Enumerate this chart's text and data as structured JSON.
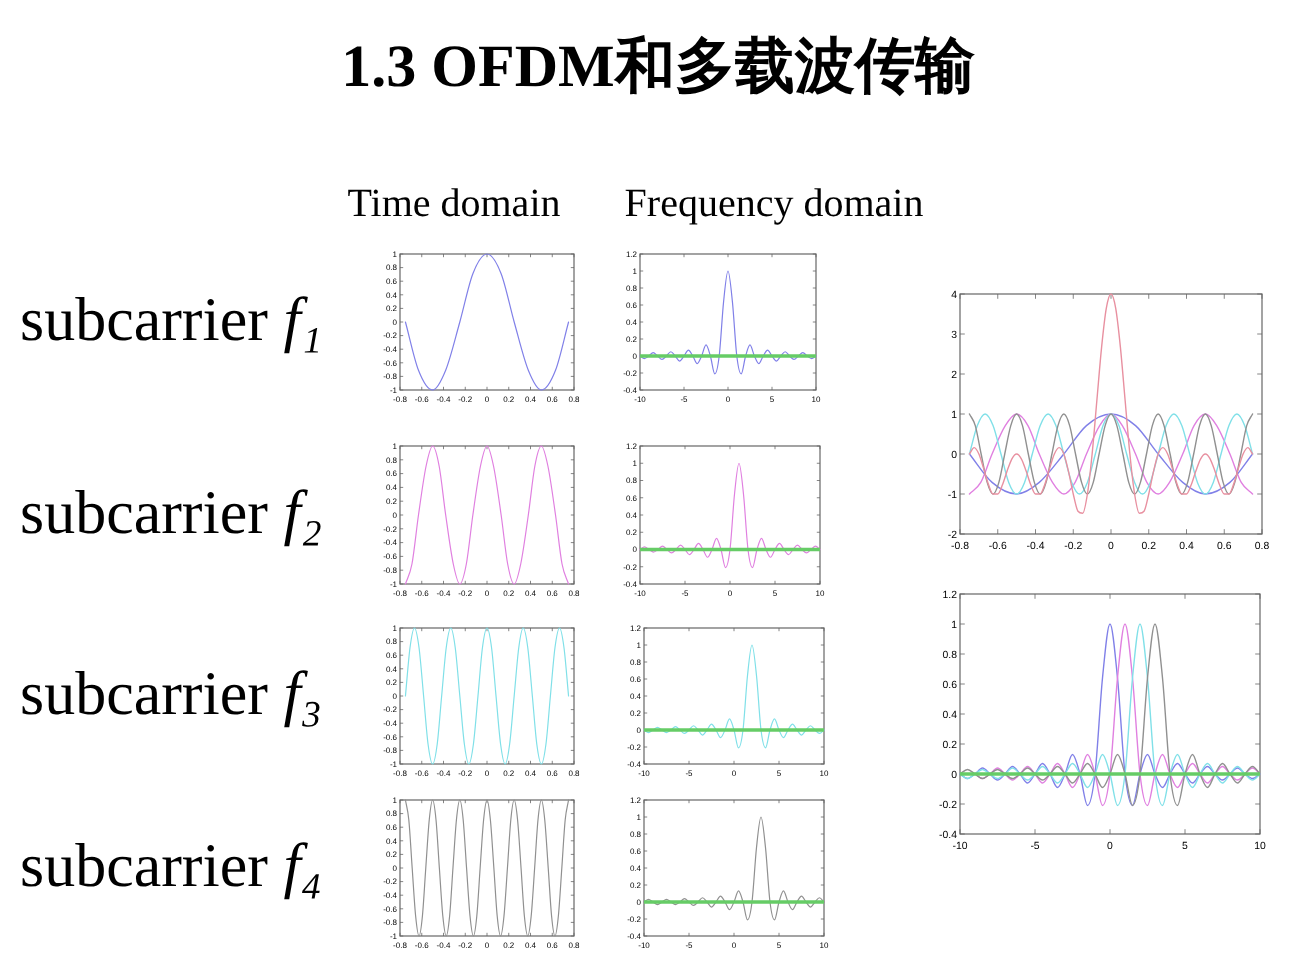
{
  "chart_data": [
    {
      "type": "other",
      "title": "1.3 OFDM和多载波传输"
    },
    {
      "type": "line",
      "title": "Time domain",
      "ylabel": "subcarrier *f₁*",
      "xlim": [
        -0.8,
        0.8
      ],
      "ylim": [
        -1,
        1
      ],
      "xticks": [
        -0.8,
        -0.6,
        -0.4,
        -0.2,
        0,
        0.2,
        0.4,
        0.6,
        0.8
      ],
      "yticks": [
        -1,
        -0.8,
        -0.6,
        -0.4,
        -0.2,
        0,
        0.2,
        0.4,
        0.6,
        0.8,
        1
      ],
      "series": [
        {
          "color": "#8080e8",
          "x": [
            -0.75,
            -0.63,
            -0.5,
            -0.38,
            -0.25,
            -0.13,
            0,
            0.13,
            0.25,
            0.38,
            0.5,
            0.63,
            0.75
          ],
          "values": [
            0,
            -0.71,
            -1,
            -0.71,
            0,
            0.71,
            1,
            0.71,
            0,
            -0.71,
            -1,
            -0.71,
            0
          ]
        }
      ]
    },
    {
      "type": "line",
      "title": "Frequency domain",
      "xlim": [
        -10,
        10
      ],
      "ylim": [
        -0.4,
        1.2
      ],
      "xticks": [
        -10,
        -5,
        0,
        5,
        10
      ],
      "yticks": [
        -0.4,
        -0.2,
        0,
        0.2,
        0.4,
        0.6,
        0.8,
        1,
        1.2
      ],
      "x": [
        -10,
        -9.5,
        -9,
        -8.5,
        -8,
        -7.5,
        -7,
        -6.5,
        -6,
        -5.5,
        -5,
        -4.5,
        -4,
        -3.5,
        -3,
        -2.5,
        -2,
        -1.5,
        -1,
        -0.5,
        0,
        0.5,
        1,
        1.5,
        2,
        2.5,
        3,
        3.5,
        4,
        4.5,
        5,
        5.5,
        6,
        6.5,
        7,
        7.5,
        8,
        8.5,
        9,
        9.5,
        10
      ],
      "series": [
        {
          "color": "#8080e8",
          "values": [
            0,
            -0.03,
            0,
            0.04,
            0,
            -0.04,
            0,
            0.05,
            0,
            -0.06,
            0,
            0.07,
            0,
            -0.09,
            0,
            0.13,
            0,
            -0.21,
            0,
            0.64,
            1,
            0.64,
            0,
            -0.21,
            0,
            0.13,
            0,
            -0.09,
            0,
            0.07,
            0,
            -0.06,
            0,
            0.05,
            0,
            -0.04,
            0,
            0.04,
            0,
            -0.03,
            0
          ]
        }
      ],
      "ref_lines": [
        {
          "axis": "y",
          "value": 0,
          "color": "#66cc66"
        }
      ]
    },
    {
      "type": "line",
      "xlim": [
        -0.8,
        0.8
      ],
      "ylim": [
        -2,
        4
      ],
      "xticks": [
        -0.8,
        -0.6,
        -0.4,
        -0.2,
        0,
        0.2,
        0.4,
        0.6,
        0.8
      ],
      "yticks": [
        -2,
        -1,
        0,
        1,
        2,
        3,
        4
      ],
      "series": [
        {
          "color": "#8080e8",
          "x": [
            -0.75,
            -0.63,
            -0.5,
            -0.38,
            -0.25,
            -0.13,
            0,
            0.13,
            0.25,
            0.38,
            0.5,
            0.63,
            0.75
          ],
          "values": [
            0,
            -0.71,
            -1,
            -0.71,
            0,
            0.71,
            1,
            0.71,
            0,
            -0.71,
            -1,
            -0.71,
            0
          ]
        },
        {
          "color": "#e080e0",
          "x": [
            -0.75,
            -0.69,
            -0.63,
            -0.56,
            -0.5,
            -0.44,
            -0.38,
            -0.31,
            -0.25,
            -0.19,
            -0.13,
            -0.06,
            0,
            0.06,
            0.13,
            0.19,
            0.25,
            0.31,
            0.38,
            0.44,
            0.5,
            0.56,
            0.63,
            0.69,
            0.75
          ],
          "values": [
            -1,
            -0.71,
            0,
            0.71,
            1,
            0.71,
            0,
            -0.71,
            -1,
            -0.71,
            0,
            0.71,
            1,
            0.71,
            0,
            -0.71,
            -1,
            -0.71,
            0,
            0.71,
            1,
            0.71,
            0,
            -0.71,
            -1
          ]
        },
        {
          "color": "#80e0e8",
          "x": [
            -0.75,
            -0.708,
            -0.667,
            -0.625,
            -0.583,
            -0.542,
            -0.5,
            -0.458,
            -0.417,
            -0.375,
            -0.333,
            -0.292,
            -0.25,
            -0.208,
            -0.167,
            -0.125,
            -0.083,
            -0.042,
            0,
            0.042,
            0.083,
            0.125,
            0.167,
            0.208,
            0.25,
            0.292,
            0.333,
            0.375,
            0.417,
            0.458,
            0.5,
            0.542,
            0.583,
            0.625,
            0.667,
            0.708,
            0.75
          ],
          "values": [
            0,
            0.71,
            1,
            0.71,
            0,
            -0.71,
            -1,
            -0.71,
            0,
            0.71,
            1,
            0.71,
            0,
            -0.71,
            -1,
            -0.71,
            0,
            0.71,
            1,
            0.71,
            0,
            -0.71,
            -1,
            -0.71,
            0,
            0.71,
            1,
            0.71,
            0,
            -0.71,
            -1,
            -0.71,
            0,
            0.71,
            1,
            0.71,
            0
          ]
        },
        {
          "color": "#909090",
          "x": [
            -0.75,
            -0.719,
            -0.688,
            -0.656,
            -0.625,
            -0.594,
            -0.563,
            -0.531,
            -0.5,
            -0.469,
            -0.438,
            -0.406,
            -0.375,
            -0.344,
            -0.313,
            -0.281,
            -0.25,
            -0.219,
            -0.188,
            -0.156,
            -0.125,
            -0.094,
            -0.063,
            -0.031,
            0,
            0.031,
            0.063,
            0.094,
            0.125,
            0.156,
            0.188,
            0.219,
            0.25,
            0.281,
            0.313,
            0.344,
            0.375,
            0.406,
            0.438,
            0.469,
            0.5,
            0.531,
            0.563,
            0.594,
            0.625,
            0.656,
            0.688,
            0.719,
            0.75
          ],
          "values": [
            1,
            0.71,
            0,
            -0.71,
            -1,
            -0.71,
            0,
            0.71,
            1,
            0.71,
            0,
            -0.71,
            -1,
            -0.71,
            0,
            0.71,
            1,
            0.71,
            0,
            -0.71,
            -1,
            -0.71,
            0,
            0.71,
            1,
            0.71,
            0,
            -0.71,
            -1,
            -0.71,
            0,
            0.71,
            1,
            0.71,
            0,
            -0.71,
            -1,
            -0.71,
            0,
            0.71,
            1,
            0.71,
            0,
            -0.71,
            -1,
            -0.71,
            0,
            0.71,
            1
          ]
        },
        {
          "color": "#e890a0",
          "x": [
            -0.75,
            -0.725,
            -0.7,
            -0.675,
            -0.65,
            -0.625,
            -0.6,
            -0.575,
            -0.55,
            -0.525,
            -0.5,
            -0.475,
            -0.45,
            -0.425,
            -0.4,
            -0.375,
            -0.35,
            -0.325,
            -0.3,
            -0.275,
            -0.25,
            -0.225,
            -0.2,
            -0.175,
            -0.15,
            -0.125,
            -0.1,
            -0.075,
            -0.05,
            -0.025,
            0,
            0.025,
            0.05,
            0.075,
            0.1,
            0.125,
            0.15,
            0.175,
            0.2,
            0.225,
            0.25,
            0.275,
            0.3,
            0.325,
            0.35,
            0.375,
            0.4,
            0.425,
            0.45,
            0.475,
            0.5,
            0.525,
            0.55,
            0.575,
            0.6,
            0.625,
            0.65,
            0.675,
            0.7,
            0.725,
            0.75
          ],
          "values": [
            0,
            0.16,
            0,
            -0.36,
            -0.75,
            -1,
            -1,
            -0.77,
            -0.42,
            -0.12,
            0,
            -0.12,
            -0.42,
            -0.77,
            -1,
            -1,
            -0.75,
            -0.36,
            0,
            0.16,
            0,
            -0.44,
            -1,
            -1.43,
            -1.48,
            -1,
            0,
            1.33,
            2.66,
            3.64,
            4,
            3.64,
            2.66,
            1.33,
            0,
            -1,
            -1.48,
            -1.43,
            -1,
            -0.44,
            0,
            0.16,
            0,
            -0.36,
            -0.75,
            -1,
            -1,
            -0.77,
            -0.42,
            -0.12,
            0,
            -0.12,
            -0.42,
            -0.77,
            -1,
            -1,
            -0.75,
            -0.36,
            0,
            0.16,
            0
          ]
        }
      ]
    },
    {
      "type": "line",
      "ylabel": "subcarrier *f₂*",
      "xlim": [
        -0.8,
        0.8
      ],
      "ylim": [
        -1,
        1
      ],
      "xticks": [
        -0.8,
        -0.6,
        -0.4,
        -0.2,
        0,
        0.2,
        0.4,
        0.6,
        0.8
      ],
      "yticks": [
        -1,
        -0.8,
        -0.6,
        -0.4,
        -0.2,
        0,
        0.2,
        0.4,
        0.6,
        0.8,
        1
      ],
      "series": [
        {
          "color": "#e080e0",
          "x": [
            -0.75,
            -0.69,
            -0.63,
            -0.56,
            -0.5,
            -0.44,
            -0.38,
            -0.31,
            -0.25,
            -0.19,
            -0.13,
            -0.06,
            0,
            0.06,
            0.13,
            0.19,
            0.25,
            0.31,
            0.38,
            0.44,
            0.5,
            0.56,
            0.63,
            0.69,
            0.75
          ],
          "values": [
            -1,
            -0.71,
            0,
            0.71,
            1,
            0.71,
            0,
            -0.71,
            -1,
            -0.71,
            0,
            0.71,
            1,
            0.71,
            0,
            -0.71,
            -1,
            -0.71,
            0,
            0.71,
            1,
            0.71,
            0,
            -0.71,
            -1
          ]
        }
      ]
    },
    {
      "type": "line",
      "xlim": [
        -10,
        10
      ],
      "ylim": [
        -0.4,
        1.2
      ],
      "xticks": [
        -10,
        -5,
        0,
        5,
        10
      ],
      "yticks": [
        -0.4,
        -0.2,
        0,
        0.2,
        0.4,
        0.6,
        0.8,
        1,
        1.2
      ],
      "x": [
        -10,
        -9.5,
        -9,
        -8.5,
        -8,
        -7.5,
        -7,
        -6.5,
        -6,
        -5.5,
        -5,
        -4.5,
        -4,
        -3.5,
        -3,
        -2.5,
        -2,
        -1.5,
        -1,
        -0.5,
        0,
        0.5,
        1,
        1.5,
        2,
        2.5,
        3,
        3.5,
        4,
        4.5,
        5,
        5.5,
        6,
        6.5,
        7,
        7.5,
        8,
        8.5,
        9,
        9.5,
        10
      ],
      "series": [
        {
          "color": "#e080e0",
          "values": [
            0,
            0.03,
            0,
            -0.03,
            0,
            0.04,
            0,
            -0.04,
            0,
            0.05,
            0,
            -0.06,
            0,
            0.07,
            0,
            -0.09,
            0,
            0.13,
            0,
            -0.21,
            0,
            0.64,
            1,
            0.64,
            0,
            -0.21,
            0,
            0.13,
            0,
            -0.09,
            0,
            0.07,
            0,
            -0.06,
            0,
            0.05,
            0,
            -0.04,
            0,
            0.04,
            0
          ]
        }
      ],
      "ref_lines": [
        {
          "axis": "y",
          "value": 0,
          "color": "#66cc66"
        }
      ]
    },
    {
      "type": "line",
      "ylabel": "subcarrier *f₃*",
      "xlim": [
        -0.8,
        0.8
      ],
      "ylim": [
        -1,
        1
      ],
      "xticks": [
        -0.8,
        -0.6,
        -0.4,
        -0.2,
        0,
        0.2,
        0.4,
        0.6,
        0.8
      ],
      "yticks": [
        -1,
        -0.8,
        -0.6,
        -0.4,
        -0.2,
        0,
        0.2,
        0.4,
        0.6,
        0.8,
        1
      ],
      "series": [
        {
          "color": "#80e0e8",
          "x": [
            -0.75,
            -0.708,
            -0.667,
            -0.625,
            -0.583,
            -0.542,
            -0.5,
            -0.458,
            -0.417,
            -0.375,
            -0.333,
            -0.292,
            -0.25,
            -0.208,
            -0.167,
            -0.125,
            -0.083,
            -0.042,
            0,
            0.042,
            0.083,
            0.125,
            0.167,
            0.208,
            0.25,
            0.292,
            0.333,
            0.375,
            0.417,
            0.458,
            0.5,
            0.542,
            0.583,
            0.625,
            0.667,
            0.708,
            0.75
          ],
          "values": [
            0,
            0.71,
            1,
            0.71,
            0,
            -0.71,
            -1,
            -0.71,
            0,
            0.71,
            1,
            0.71,
            0,
            -0.71,
            -1,
            -0.71,
            0,
            0.71,
            1,
            0.71,
            0,
            -0.71,
            -1,
            -0.71,
            0,
            0.71,
            1,
            0.71,
            0,
            -0.71,
            -1,
            -0.71,
            0,
            0.71,
            1,
            0.71,
            0
          ]
        }
      ]
    },
    {
      "type": "line",
      "xlim": [
        -10,
        10
      ],
      "ylim": [
        -0.4,
        1.2
      ],
      "xticks": [
        -10,
        -5,
        0,
        5,
        10
      ],
      "yticks": [
        -0.4,
        -0.2,
        0,
        0.2,
        0.4,
        0.6,
        0.8,
        1,
        1.2
      ],
      "x": [
        -10,
        -9.5,
        -9,
        -8.5,
        -8,
        -7.5,
        -7,
        -6.5,
        -6,
        -5.5,
        -5,
        -4.5,
        -4,
        -3.5,
        -3,
        -2.5,
        -2,
        -1.5,
        -1,
        -0.5,
        0,
        0.5,
        1,
        1.5,
        2,
        2.5,
        3,
        3.5,
        4,
        4.5,
        5,
        5.5,
        6,
        6.5,
        7,
        7.5,
        8,
        8.5,
        9,
        9.5,
        10
      ],
      "series": [
        {
          "color": "#80e0e8",
          "values": [
            0,
            -0.03,
            0,
            0.03,
            0,
            -0.03,
            0,
            0.04,
            0,
            -0.04,
            0,
            0.05,
            0,
            -0.06,
            0,
            0.07,
            0,
            -0.09,
            0,
            0.13,
            0,
            -0.21,
            0,
            0.64,
            1,
            0.64,
            0,
            -0.21,
            0,
            0.13,
            0,
            -0.09,
            0,
            0.07,
            0,
            -0.06,
            0,
            0.05,
            0,
            -0.04,
            0
          ]
        }
      ],
      "ref_lines": [
        {
          "axis": "y",
          "value": 0,
          "color": "#66cc66"
        }
      ]
    },
    {
      "type": "line",
      "xlim": [
        -10,
        10
      ],
      "ylim": [
        -0.4,
        1.2
      ],
      "xticks": [
        -10,
        -5,
        0,
        5,
        10
      ],
      "yticks": [
        -0.4,
        -0.2,
        0,
        0.2,
        0.4,
        0.6,
        0.8,
        1,
        1.2
      ],
      "x": [
        -10,
        -9.5,
        -9,
        -8.5,
        -8,
        -7.5,
        -7,
        -6.5,
        -6,
        -5.5,
        -5,
        -4.5,
        -4,
        -3.5,
        -3,
        -2.5,
        -2,
        -1.5,
        -1,
        -0.5,
        0,
        0.5,
        1,
        1.5,
        2,
        2.5,
        3,
        3.5,
        4,
        4.5,
        5,
        5.5,
        6,
        6.5,
        7,
        7.5,
        8,
        8.5,
        9,
        9.5,
        10
      ],
      "series": [
        {
          "color": "#8080e8",
          "values": [
            0,
            -0.03,
            0,
            0.04,
            0,
            -0.04,
            0,
            0.05,
            0,
            -0.06,
            0,
            0.07,
            0,
            -0.09,
            0,
            0.13,
            0,
            -0.21,
            0,
            0.64,
            1,
            0.64,
            0,
            -0.21,
            0,
            0.13,
            0,
            -0.09,
            0,
            0.07,
            0,
            -0.06,
            0,
            0.05,
            0,
            -0.04,
            0,
            0.04,
            0,
            -0.03,
            0
          ]
        },
        {
          "color": "#e080e0",
          "values": [
            null,
            null,
            0,
            -0.03,
            0,
            0.04,
            0,
            -0.04,
            0,
            0.05,
            0,
            -0.06,
            0,
            0.07,
            0,
            -0.09,
            0,
            0.13,
            0,
            -0.21,
            0,
            0.64,
            1,
            0.64,
            0,
            -0.21,
            0,
            0.13,
            0,
            -0.09,
            0,
            0.07,
            0,
            -0.06,
            0,
            0.05,
            0,
            -0.04,
            0,
            0.04,
            0
          ]
        },
        {
          "color": "#80e0e8",
          "values": [
            0,
            -0.03,
            0,
            0.03,
            0,
            -0.03,
            0,
            0.04,
            0,
            -0.04,
            0,
            0.05,
            0,
            -0.06,
            0,
            0.07,
            0,
            -0.09,
            0,
            0.13,
            0,
            -0.21,
            0,
            0.64,
            1,
            0.64,
            0,
            -0.21,
            0,
            0.13,
            0,
            -0.09,
            0,
            0.07,
            0,
            -0.06,
            0,
            0.05,
            0,
            -0.04,
            0
          ]
        },
        {
          "color": "#909090",
          "values": [
            0,
            0.03,
            0,
            -0.03,
            0,
            0.03,
            0,
            -0.03,
            0,
            0.04,
            0,
            -0.04,
            0,
            0.05,
            0,
            -0.06,
            0,
            0.07,
            0,
            -0.09,
            0,
            0.13,
            0,
            -0.21,
            0,
            0.64,
            1,
            0.64,
            0,
            -0.21,
            0,
            0.13,
            0,
            -0.09,
            0,
            0.07,
            0,
            -0.06,
            0,
            0.05,
            0
          ]
        }
      ],
      "ref_lines": [
        {
          "axis": "y",
          "value": 0,
          "color": "#66cc66"
        }
      ]
    },
    {
      "type": "line",
      "ylabel": "subcarrier *f₄*",
      "xlim": [
        -0.8,
        0.8
      ],
      "ylim": [
        -1,
        1
      ],
      "xticks": [
        -0.8,
        -0.6,
        -0.4,
        -0.2,
        0,
        0.2,
        0.4,
        0.6,
        0.8
      ],
      "yticks": [
        -1,
        -0.8,
        -0.6,
        -0.4,
        -0.2,
        0,
        0.2,
        0.4,
        0.6,
        0.8,
        1
      ],
      "series": [
        {
          "color": "#909090",
          "x": [
            -0.75,
            -0.719,
            -0.688,
            -0.656,
            -0.625,
            -0.594,
            -0.563,
            -0.531,
            -0.5,
            -0.469,
            -0.438,
            -0.406,
            -0.375,
            -0.344,
            -0.313,
            -0.281,
            -0.25,
            -0.219,
            -0.188,
            -0.156,
            -0.125,
            -0.094,
            -0.063,
            -0.031,
            0,
            0.031,
            0.063,
            0.094,
            0.125,
            0.156,
            0.188,
            0.219,
            0.25,
            0.281,
            0.313,
            0.344,
            0.375,
            0.406,
            0.438,
            0.469,
            0.5,
            0.531,
            0.563,
            0.594,
            0.625,
            0.656,
            0.688,
            0.719,
            0.75
          ],
          "values": [
            1,
            0.71,
            0,
            -0.71,
            -1,
            -0.71,
            0,
            0.71,
            1,
            0.71,
            0,
            -0.71,
            -1,
            -0.71,
            0,
            0.71,
            1,
            0.71,
            0,
            -0.71,
            -1,
            -0.71,
            0,
            0.71,
            1,
            0.71,
            0,
            -0.71,
            -1,
            -0.71,
            0,
            0.71,
            1,
            0.71,
            0,
            -0.71,
            -1,
            -0.71,
            0,
            0.71,
            1,
            0.71,
            0,
            -0.71,
            -1,
            -0.71,
            0,
            0.71,
            1
          ]
        }
      ]
    },
    {
      "type": "line",
      "xlim": [
        -10,
        10
      ],
      "ylim": [
        -0.4,
        1.2
      ],
      "xticks": [
        -10,
        -5,
        0,
        5,
        10
      ],
      "yticks": [
        -0.4,
        -0.2,
        0,
        0.2,
        0.4,
        0.6,
        0.8,
        1,
        1.2
      ],
      "x": [
        -10,
        -9.5,
        -9,
        -8.5,
        -8,
        -7.5,
        -7,
        -6.5,
        -6,
        -5.5,
        -5,
        -4.5,
        -4,
        -3.5,
        -3,
        -2.5,
        -2,
        -1.5,
        -1,
        -0.5,
        0,
        0.5,
        1,
        1.5,
        2,
        2.5,
        3,
        3.5,
        4,
        4.5,
        5,
        5.5,
        6,
        6.5,
        7,
        7.5,
        8,
        8.5,
        9,
        9.5,
        10
      ],
      "series": [
        {
          "color": "#909090",
          "values": [
            0,
            0.03,
            0,
            -0.03,
            0,
            0.03,
            0,
            -0.03,
            0,
            0.04,
            0,
            -0.04,
            0,
            0.05,
            0,
            -0.06,
            0,
            0.07,
            0,
            -0.09,
            0,
            0.13,
            0,
            -0.21,
            0,
            0.64,
            1,
            0.64,
            0,
            -0.21,
            0,
            0.13,
            0,
            -0.09,
            0,
            0.07,
            0,
            -0.06,
            0,
            0.05,
            0
          ]
        }
      ],
      "ref_lines": [
        {
          "axis": "y",
          "value": 0,
          "color": "#66cc66"
        }
      ]
    }
  ]
}
